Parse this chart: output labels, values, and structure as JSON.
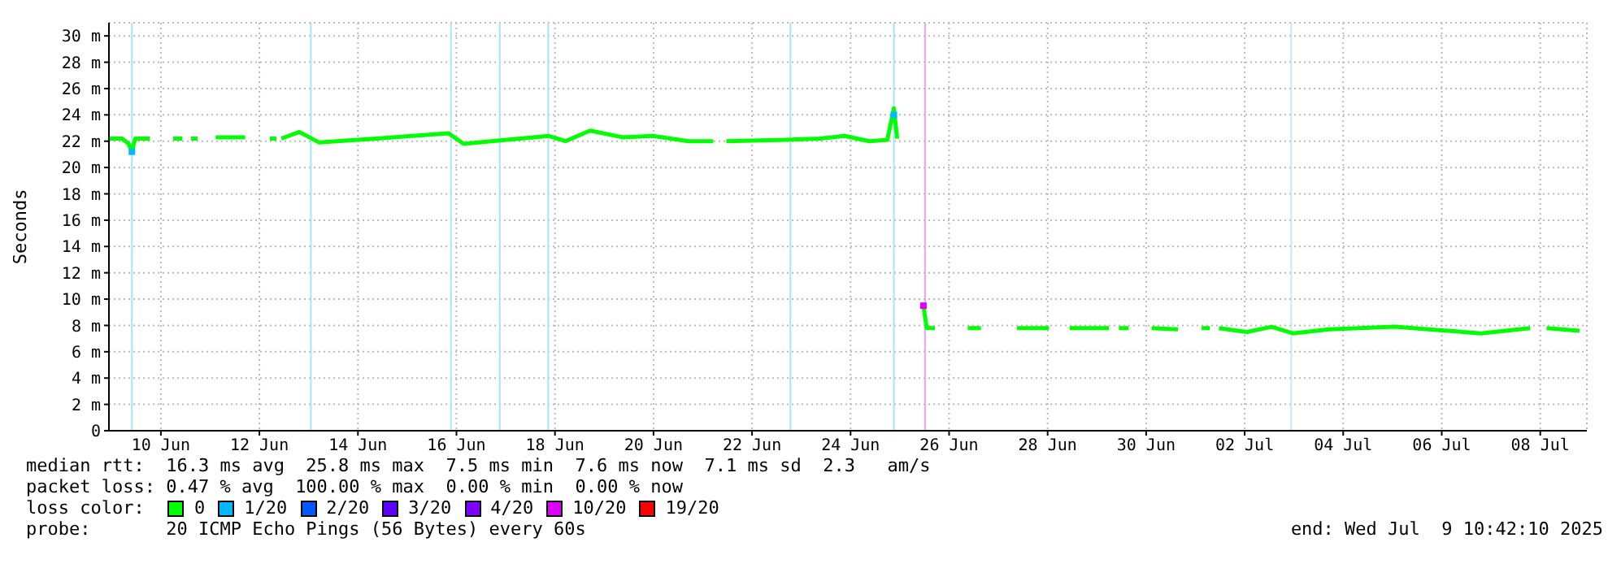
{
  "chart_data": {
    "type": "line",
    "ylabel": "Seconds",
    "legend_title": "loss color:",
    "legend": "bottom",
    "grid": true,
    "marker": "none",
    "line_style": "solid",
    "xlim": [
      "2025-06-09T10:42",
      "2025-07-09T10:42"
    ],
    "xticks": [
      {
        "value": "2025-06-10T12:00",
        "label": "10 Jun"
      },
      {
        "value": "2025-06-12T12:00",
        "label": "12 Jun"
      },
      {
        "value": "2025-06-14T12:00",
        "label": "14 Jun"
      },
      {
        "value": "2025-06-16T12:00",
        "label": "16 Jun"
      },
      {
        "value": "2025-06-18T12:00",
        "label": "18 Jun"
      },
      {
        "value": "2025-06-20T12:00",
        "label": "20 Jun"
      },
      {
        "value": "2025-06-22T12:00",
        "label": "22 Jun"
      },
      {
        "value": "2025-06-24T12:00",
        "label": "24 Jun"
      },
      {
        "value": "2025-06-26T12:00",
        "label": "26 Jun"
      },
      {
        "value": "2025-06-28T12:00",
        "label": "28 Jun"
      },
      {
        "value": "2025-06-30T12:00",
        "label": "30 Jun"
      },
      {
        "value": "2025-07-02T12:00",
        "label": "02 Jul"
      },
      {
        "value": "2025-07-04T12:00",
        "label": "04 Jul"
      },
      {
        "value": "2025-07-06T12:00",
        "label": "06 Jul"
      },
      {
        "value": "2025-07-08T12:00",
        "label": "08 Jul"
      }
    ],
    "ylim": [
      0,
      31
    ],
    "yticks": [
      0,
      {
        "value": 2,
        "label": "2 m"
      },
      {
        "value": 4,
        "label": "4 m"
      },
      {
        "value": 6,
        "label": "6 m"
      },
      {
        "value": 8,
        "label": "8 m"
      },
      {
        "value": 10,
        "label": "10 m"
      },
      {
        "value": 12,
        "label": "12 m"
      },
      {
        "value": 14,
        "label": "14 m"
      },
      {
        "value": 16,
        "label": "16 m"
      },
      {
        "value": 18,
        "label": "18 m"
      },
      {
        "value": 20,
        "label": "20 m"
      },
      {
        "value": 22,
        "label": "22 m"
      },
      {
        "value": 24,
        "label": "24 m"
      },
      {
        "value": 26,
        "label": "26 m"
      },
      {
        "value": 28,
        "label": "28 m"
      },
      {
        "value": 30,
        "label": "30 m"
      }
    ],
    "x": [
      "2025-06-09T10:42",
      "2025-06-09T17:06",
      "2025-06-09T20:18",
      "2025-06-09T21:54",
      "2025-06-09T23:30",
      "2025-06-10T06:42",
      "2025-06-10T12:00",
      "2025-06-10T18:00",
      "2025-06-10T22:30",
      "2025-06-11T00:00",
      "2025-06-11T02:42",
      "2025-06-11T05:54",
      "2025-06-11T10:00",
      "2025-06-11T14:42",
      "2025-06-12T05:06",
      "2025-06-12T12:00",
      "2025-06-12T17:06",
      "2025-06-12T20:18",
      "2025-06-12T21:30",
      "2025-06-12T22:42",
      "2025-06-13T07:30",
      "2025-06-13T17:06",
      "2025-06-14T21:06",
      "2025-06-16T08:06",
      "2025-06-16T15:30",
      "2025-06-17T05:06",
      "2025-06-18T09:06",
      "2025-06-18T17:06",
      "2025-06-19T05:06",
      "2025-06-19T21:06",
      "2025-06-20T11:30",
      "2025-06-21T05:06",
      "2025-06-21T17:06",
      "2025-06-21T20:00",
      "2025-06-21T23:30",
      "2025-06-23T05:06",
      "2025-06-23T21:06",
      "2025-06-24T09:06",
      "2025-06-24T21:06",
      "2025-06-25T05:54",
      "2025-06-25T09:06",
      "2025-06-25T10:42",
      "2025-06-25T18:00",
      "2025-06-25T23:30",
      "2025-06-26T01:06",
      "2025-06-26T05:06",
      "2025-06-26T12:00",
      "2025-06-26T21:06",
      "2025-06-27T03:30",
      "2025-06-27T12:00",
      "2025-06-27T21:06",
      "2025-06-28T12:42",
      "2025-06-28T18:00",
      "2025-06-28T22:42",
      "2025-06-29T17:54",
      "2025-06-29T20:00",
      "2025-06-29T22:42",
      "2025-06-30T03:30",
      "2025-06-30T08:00",
      "2025-06-30T14:42",
      "2025-07-01T03:30",
      "2025-07-01T10:00",
      "2025-07-01T15:00",
      "2025-07-01T19:00",
      "2025-07-01T20:00",
      "2025-07-01T23:30",
      "2025-07-02T13:06",
      "2025-07-03T01:06",
      "2025-07-03T11:30",
      "2025-07-04T05:06",
      "2025-07-05T13:06",
      "2025-07-07T07:06",
      "2025-07-08T07:06",
      "2025-07-08T11:00",
      "2025-07-08T15:06",
      "2025-07-09T07:06"
    ],
    "series": [
      {
        "name": "0",
        "color": "#00ff00",
        "values": [
          22.2,
          22.2,
          21.8,
          21.2,
          22.2,
          22.2,
          null,
          22.2,
          22.2,
          null,
          22.2,
          22.2,
          null,
          22.3,
          22.3,
          null,
          22.2,
          22.2,
          null,
          22.2,
          22.7,
          21.9,
          22.2,
          22.6,
          21.8,
          22,
          22.4,
          22,
          22.8,
          22.3,
          22.4,
          22,
          22,
          null,
          22,
          22.1,
          22.2,
          22.4,
          22,
          22.1,
          24.5,
          22.2,
          null,
          9.5,
          7.8,
          7.8,
          null,
          7.8,
          7.8,
          null,
          7.8,
          7.8,
          null,
          7.8,
          7.8,
          null,
          7.8,
          7.8,
          null,
          7.8,
          7.7,
          null,
          7.8,
          7.8,
          null,
          7.8,
          7.5,
          7.9,
          7.4,
          7.7,
          7.9,
          7.4,
          7.8,
          null,
          7.8,
          7.6
        ]
      },
      {
        "name": "1/20",
        "color": "#00b8ff",
        "type": "scatter",
        "marker": "square",
        "values": [
          null,
          null,
          null,
          21.2,
          null,
          null,
          null,
          null,
          null,
          null,
          null,
          null,
          null,
          null,
          null,
          null,
          null,
          null,
          null,
          null,
          null,
          null,
          null,
          null,
          null,
          null,
          null,
          null,
          null,
          null,
          null,
          null,
          null,
          null,
          null,
          null,
          null,
          null,
          null,
          null,
          24,
          null,
          null,
          null,
          null,
          null,
          null,
          null,
          null,
          null,
          null,
          null,
          null,
          null,
          null,
          null,
          null,
          null,
          null,
          null,
          null,
          null,
          null,
          null,
          null,
          null,
          null,
          null,
          null,
          null,
          null,
          null,
          null,
          null,
          null,
          null
        ]
      },
      {
        "name": "2/20",
        "color": "#0059ff",
        "type": "scatter",
        "values": [
          null,
          null,
          null,
          null,
          null,
          null,
          null,
          null,
          null,
          null,
          null,
          null,
          null,
          null,
          null,
          null,
          null,
          null,
          null,
          null,
          null,
          null,
          null,
          null,
          null,
          null,
          null,
          null,
          null,
          null,
          null,
          null,
          null,
          null,
          null,
          null,
          null,
          null,
          null,
          null,
          null,
          null,
          null,
          null,
          null,
          null,
          null,
          null,
          null,
          null,
          null,
          null,
          null,
          null,
          null,
          null,
          null,
          null,
          null,
          null,
          null,
          null,
          null,
          null,
          null,
          null,
          null,
          null,
          null,
          null,
          null,
          null,
          null,
          null,
          null,
          null
        ]
      },
      {
        "name": "3/20",
        "color": "#5e00ff",
        "type": "scatter",
        "values": [
          null,
          null,
          null,
          null,
          null,
          null,
          null,
          null,
          null,
          null,
          null,
          null,
          null,
          null,
          null,
          null,
          null,
          null,
          null,
          null,
          null,
          null,
          null,
          null,
          null,
          null,
          null,
          null,
          null,
          null,
          null,
          null,
          null,
          null,
          null,
          null,
          null,
          null,
          null,
          null,
          null,
          null,
          null,
          null,
          null,
          null,
          null,
          null,
          null,
          null,
          null,
          null,
          null,
          null,
          null,
          null,
          null,
          null,
          null,
          null,
          null,
          null,
          null,
          null,
          null,
          null,
          null,
          null,
          null,
          null,
          null,
          null,
          null,
          null,
          null,
          null
        ]
      },
      {
        "name": "4/20",
        "color": "#7e00ff",
        "type": "scatter",
        "values": [
          null,
          null,
          null,
          null,
          null,
          null,
          null,
          null,
          null,
          null,
          null,
          null,
          null,
          null,
          null,
          null,
          null,
          null,
          null,
          null,
          null,
          null,
          null,
          null,
          null,
          null,
          null,
          null,
          null,
          null,
          null,
          null,
          null,
          null,
          null,
          null,
          null,
          null,
          null,
          null,
          null,
          null,
          null,
          null,
          null,
          null,
          null,
          null,
          null,
          null,
          null,
          null,
          null,
          null,
          null,
          null,
          null,
          null,
          null,
          null,
          null,
          null,
          null,
          null,
          null,
          null,
          null,
          null,
          null,
          null,
          null,
          null,
          null,
          null,
          null,
          null
        ]
      },
      {
        "name": "10/20",
        "color": "#dd00ff",
        "type": "scatter",
        "marker": "square",
        "values": [
          null,
          null,
          null,
          null,
          null,
          null,
          null,
          null,
          null,
          null,
          null,
          null,
          null,
          null,
          null,
          null,
          null,
          null,
          null,
          null,
          null,
          null,
          null,
          null,
          null,
          null,
          null,
          null,
          null,
          null,
          null,
          null,
          null,
          null,
          null,
          null,
          null,
          null,
          null,
          null,
          null,
          null,
          null,
          9.5,
          null,
          null,
          null,
          null,
          null,
          null,
          null,
          null,
          null,
          null,
          null,
          null,
          null,
          null,
          null,
          null,
          null,
          null,
          null,
          null,
          null,
          null,
          null,
          null,
          null,
          null,
          null,
          null,
          null,
          null,
          null,
          null
        ]
      },
      {
        "name": "19/20",
        "color": "#ff0000",
        "type": "scatter",
        "values": [
          null,
          null,
          null,
          null,
          null,
          null,
          null,
          null,
          null,
          null,
          null,
          null,
          null,
          null,
          null,
          null,
          null,
          null,
          null,
          null,
          null,
          null,
          null,
          null,
          null,
          null,
          null,
          null,
          null,
          null,
          null,
          null,
          null,
          null,
          null,
          null,
          null,
          null,
          null,
          null,
          null,
          null,
          null,
          null,
          null,
          null,
          null,
          null,
          null,
          null,
          null,
          null,
          null,
          null,
          null,
          null,
          null,
          null,
          null,
          null,
          null,
          null,
          null,
          null,
          null,
          null,
          null,
          null,
          null,
          null,
          null,
          null,
          null,
          null,
          null,
          null
        ]
      }
    ],
    "ref_lines": [
      {
        "axis": "x",
        "value": "2025-06-09T21:54",
        "color": "#a8e4f8"
      },
      {
        "axis": "x",
        "value": "2025-06-13T13:06",
        "color": "#a8e4f8"
      },
      {
        "axis": "x",
        "value": "2025-06-16T09:18",
        "color": "#a8e4f8"
      },
      {
        "axis": "x",
        "value": "2025-06-17T09:06",
        "color": "#a8e4f8"
      },
      {
        "axis": "x",
        "value": "2025-06-18T08:42",
        "color": "#a8e4f8"
      },
      {
        "axis": "x",
        "value": "2025-06-23T06:42",
        "color": "#a8e4f8"
      },
      {
        "axis": "x",
        "value": "2025-06-25T09:06",
        "color": "#a8e4f8"
      },
      {
        "axis": "x",
        "value": "2025-06-26T00:18",
        "color": "#f0a0f8"
      },
      {
        "axis": "x",
        "value": "2025-07-03T10:42",
        "color": "#c8e8f4"
      }
    ],
    "annotations": [
      "median rtt:  16.3 ms avg  25.8 ms max  7.5 ms min  7.6 ms now  7.1 ms sd  2.3   am/s",
      "packet loss: 0.47 % avg  100.00 % max  0.00 % min  0.00 % now",
      "probe:       20 ICMP Echo Pings (56 Bytes) every 60s",
      "end: Wed Jul  9 10:42:10 2025"
    ]
  }
}
